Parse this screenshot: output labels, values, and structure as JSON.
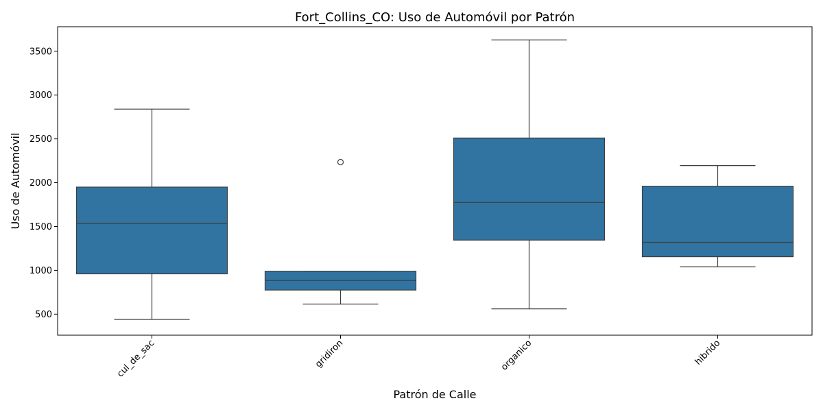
{
  "chart_data": {
    "type": "box",
    "title": "Fort_Collins_CO: Uso de Automóvil por Patrón",
    "xlabel": "Patrón de Calle",
    "ylabel": "Uso de Automóvil",
    "categories": [
      "cul_de_sac",
      "gridiron",
      "organico",
      "hibrido"
    ],
    "ylim": [
      260,
      3780
    ],
    "yticks": [
      500,
      1000,
      1500,
      2000,
      2500,
      3000,
      3500
    ],
    "box_color": "#3274a1",
    "line_color": "#3d3d3d",
    "grid": false,
    "boxes": [
      {
        "category": "cul_de_sac",
        "whisker_low": 440,
        "q1": 960,
        "median": 1535,
        "q3": 1950,
        "whisker_high": 2840,
        "outliers": []
      },
      {
        "category": "gridiron",
        "whisker_low": 615,
        "q1": 775,
        "median": 885,
        "q3": 990,
        "whisker_high": 990,
        "outliers": [
          2235
        ]
      },
      {
        "category": "organico",
        "whisker_low": 560,
        "q1": 1345,
        "median": 1775,
        "q3": 2510,
        "whisker_high": 3630,
        "outliers": []
      },
      {
        "category": "hibrido",
        "whisker_low": 1040,
        "q1": 1155,
        "median": 1320,
        "q3": 1960,
        "whisker_high": 2195,
        "outliers": []
      }
    ]
  }
}
